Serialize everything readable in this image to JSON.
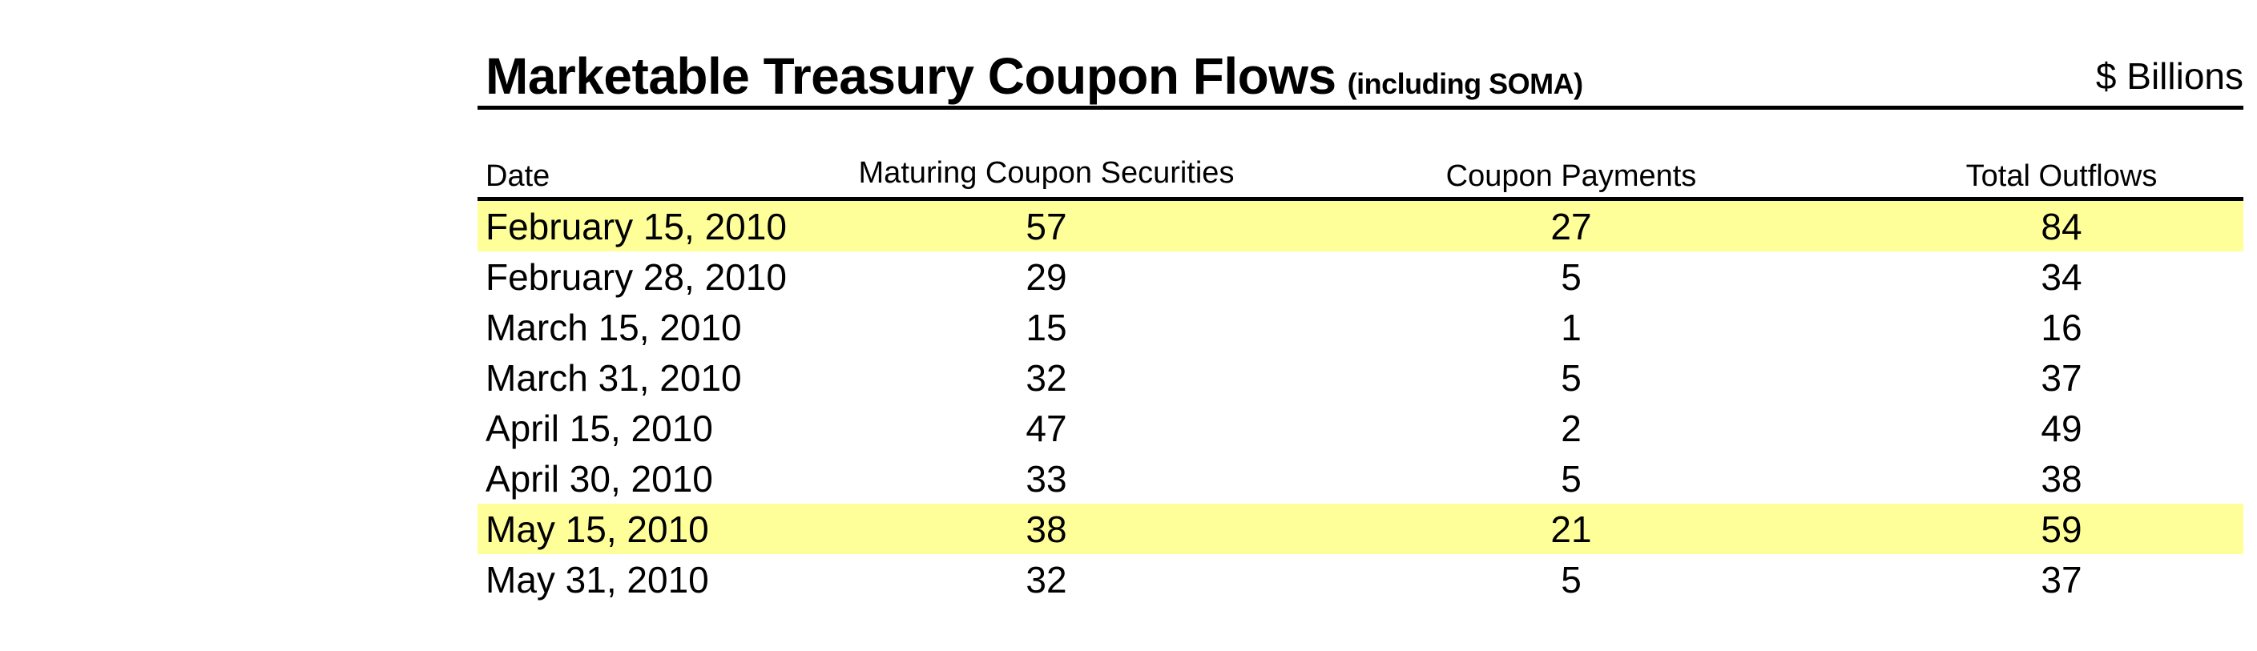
{
  "header": {
    "title": "Marketable Treasury Coupon Flows",
    "subtitle": "(including SOMA)",
    "units": "$ Billions"
  },
  "colors": {
    "highlight": "#ffff99",
    "rule": "#000000"
  },
  "table": {
    "columns": [
      "Date",
      "Maturing Coupon Securities",
      "Coupon Payments",
      "Total Outflows"
    ],
    "rows": [
      {
        "date": "February 15, 2010",
        "maturing": "57",
        "coupon": "27",
        "total": "84",
        "highlighted": true
      },
      {
        "date": "February 28, 2010",
        "maturing": "29",
        "coupon": "5",
        "total": "34",
        "highlighted": false
      },
      {
        "date": "March 15, 2010",
        "maturing": "15",
        "coupon": "1",
        "total": "16",
        "highlighted": false
      },
      {
        "date": "March 31, 2010",
        "maturing": "32",
        "coupon": "5",
        "total": "37",
        "highlighted": false
      },
      {
        "date": "April 15, 2010",
        "maturing": "47",
        "coupon": "2",
        "total": "49",
        "highlighted": false
      },
      {
        "date": "April 30, 2010",
        "maturing": "33",
        "coupon": "5",
        "total": "38",
        "highlighted": false
      },
      {
        "date": "May 15, 2010",
        "maturing": "38",
        "coupon": "21",
        "total": "59",
        "highlighted": true
      },
      {
        "date": "May 31, 2010",
        "maturing": "32",
        "coupon": "5",
        "total": "37",
        "highlighted": false
      }
    ]
  }
}
